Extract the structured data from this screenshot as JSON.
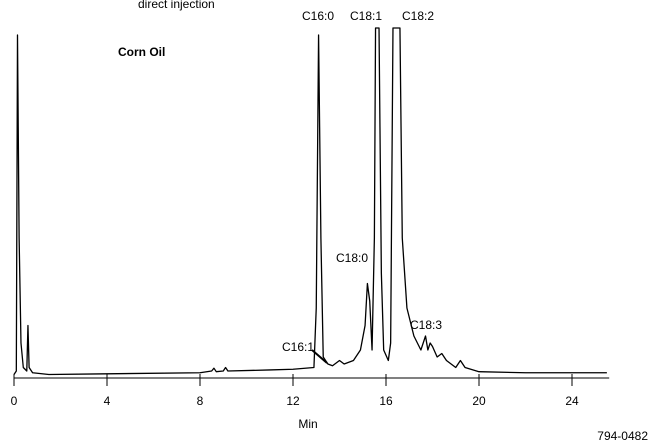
{
  "chart_data": {
    "type": "line",
    "title": "Corn Oil",
    "subtitle": "direct injection",
    "xlabel": "Min",
    "footnote": "794-0482",
    "xlim": [
      0,
      25.6
    ],
    "xticks": [
      0,
      4,
      8,
      12,
      16,
      20,
      24
    ],
    "ylim": [
      0,
      100
    ],
    "color": "#000000",
    "x": [
      0,
      0.1,
      0.15,
      0.22,
      0.3,
      0.4,
      0.55,
      0.6,
      0.65,
      0.8,
      1.5,
      4,
      8,
      8.5,
      8.6,
      8.7,
      9,
      9.1,
      9.2,
      11,
      12,
      12.9,
      13.0,
      13.1,
      13.2,
      13.3,
      13.5,
      13.7,
      14,
      14.2,
      14.6,
      14.9,
      15.1,
      15.2,
      15.3,
      15.4,
      15.5,
      15.55,
      15.7,
      15.8,
      15.9,
      16.1,
      16.2,
      16.3,
      16.6,
      16.7,
      16.9,
      17.2,
      17.5,
      17.6,
      17.7,
      17.8,
      17.9,
      18.0,
      18.2,
      18.4,
      18.6,
      19,
      19.2,
      19.4,
      20,
      22,
      25.5
    ],
    "values": [
      1,
      2,
      98,
      40,
      10,
      3,
      2,
      15,
      3,
      1.5,
      1,
      1.2,
      1.5,
      2,
      2.8,
      1.8,
      2,
      3,
      2,
      2.3,
      2.5,
      3,
      20,
      98,
      40,
      6,
      4,
      3.5,
      5,
      4,
      5,
      8,
      15,
      27,
      22,
      8,
      40,
      100,
      100,
      30,
      8,
      5,
      10,
      100,
      100,
      40,
      20,
      12,
      8,
      10,
      12,
      8,
      10,
      9,
      6,
      7,
      5,
      3,
      5,
      3,
      1.8,
      1.5,
      1.5
    ],
    "peak_labels": [
      "C16:0",
      "C18:1",
      "C18:2",
      "C18:0",
      "C16:1",
      "C18:3"
    ]
  }
}
